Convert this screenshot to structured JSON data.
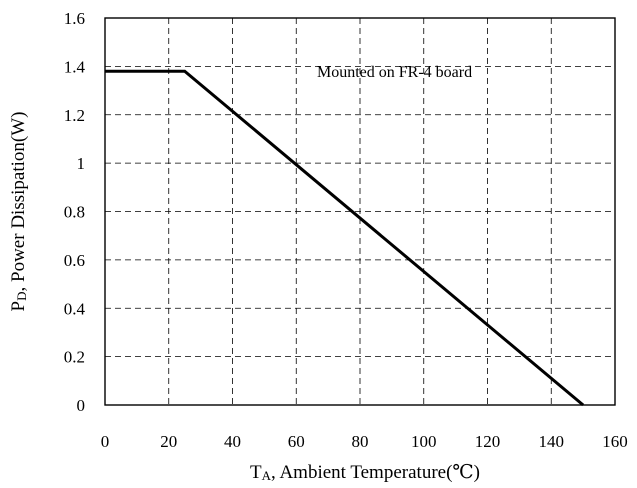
{
  "chart_data": {
    "type": "line",
    "annotation": "Mounted on FR-4 board",
    "xlabel": {
      "main": "T",
      "sub": "A",
      "rest": ", Ambient Temperature(℃)"
    },
    "ylabel": {
      "main": "P",
      "sub": "D",
      "rest": ", Power Dissipation(W)"
    },
    "xlim": [
      0,
      160
    ],
    "ylim": [
      0,
      1.6
    ],
    "x_ticks": [
      0,
      20,
      40,
      60,
      80,
      100,
      120,
      140,
      160
    ],
    "y_ticks": [
      0,
      0.2,
      0.4,
      0.6,
      0.8,
      1,
      1.2,
      1.4,
      1.6
    ],
    "x_tick_labels": [
      "0",
      "20",
      "40",
      "60",
      "80",
      "100",
      "120",
      "140",
      "160"
    ],
    "y_tick_labels": [
      "0",
      "0.2",
      "0.4",
      "0.6",
      "0.8",
      "1",
      "1.2",
      "1.4",
      "1.6"
    ],
    "grid": true,
    "grid_style": "dashed",
    "series": [
      {
        "x": [
          0,
          25,
          150
        ],
        "y": [
          1.38,
          1.38,
          0
        ],
        "color": "#000000"
      }
    ]
  }
}
